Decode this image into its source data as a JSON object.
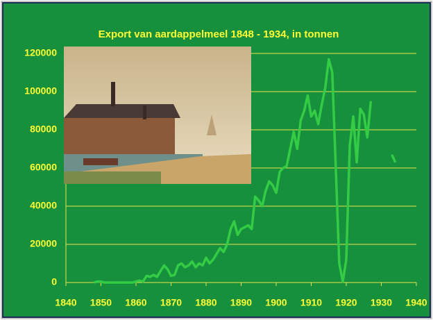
{
  "chart_data": {
    "type": "line",
    "title": "Export  van aardappelmeel 1848 - 1934, in tonnen",
    "x": [
      1848,
      1849,
      1850,
      1851,
      1852,
      1853,
      1854,
      1855,
      1856,
      1857,
      1858,
      1859,
      1860,
      1861,
      1862,
      1863,
      1864,
      1865,
      1866,
      1867,
      1868,
      1869,
      1870,
      1871,
      1872,
      1873,
      1874,
      1875,
      1876,
      1877,
      1878,
      1879,
      1880,
      1881,
      1882,
      1883,
      1884,
      1885,
      1886,
      1887,
      1888,
      1889,
      1890,
      1891,
      1892,
      1893,
      1894,
      1895,
      1896,
      1897,
      1898,
      1899,
      1900,
      1901,
      1902,
      1903,
      1904,
      1905,
      1906,
      1907,
      1908,
      1909,
      1910,
      1911,
      1912,
      1913,
      1914,
      1915,
      1916,
      1917,
      1918,
      1919,
      1920,
      1921,
      1922,
      1923,
      1924,
      1925,
      1926,
      1927,
      1928,
      1929,
      1930,
      1931,
      1932,
      1933,
      1934
    ],
    "values": [
      0,
      500,
      500,
      0,
      0,
      0,
      0,
      0,
      0,
      0,
      0,
      0,
      500,
      1000,
      500,
      3500,
      3000,
      4000,
      3000,
      6000,
      9000,
      7000,
      3500,
      4000,
      9000,
      10000,
      8000,
      9000,
      11000,
      8000,
      10000,
      9000,
      13000,
      10000,
      12000,
      15000,
      18000,
      16000,
      20000,
      28000,
      32000,
      25000,
      28000,
      29000,
      30000,
      28000,
      45000,
      43000,
      40000,
      48000,
      53000,
      51000,
      47000,
      58000,
      60000,
      61000,
      70000,
      79000,
      70000,
      85000,
      90000,
      98000,
      87000,
      90000,
      83000,
      93000,
      102000,
      117000,
      110000,
      60000,
      10000,
      500,
      12000,
      72000,
      87000,
      63000,
      91000,
      88000,
      76000,
      95000,
      null,
      null,
      null,
      null,
      null,
      67000,
      63000
    ],
    "color": "#33cc44",
    "xlim": [
      1840,
      1940
    ],
    "xticks": [
      1840,
      1850,
      1860,
      1870,
      1880,
      1890,
      1900,
      1910,
      1920,
      1930,
      1940
    ],
    "ylim": [
      0,
      120000
    ],
    "yticks": [
      0,
      20000,
      40000,
      60000,
      80000,
      100000,
      120000
    ],
    "grid": true
  }
}
